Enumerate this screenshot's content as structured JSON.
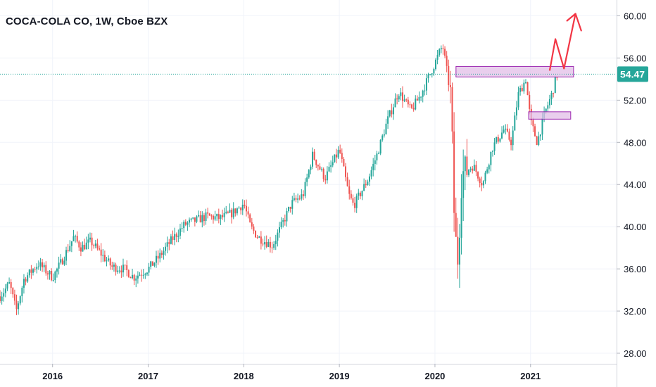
{
  "header": {
    "title": "COCA-COLA CO, 1W, Cboe BZX"
  },
  "colors": {
    "up": "#26a69a",
    "down": "#ef5350",
    "price_line": "#26a69a",
    "zone_fill": "#e1bee7",
    "zone_stroke": "#9c27b0",
    "arrow": "#f23645",
    "grid": "#f0f3fa"
  },
  "chart_data": {
    "type": "candlestick",
    "symbol": "COCA-COLA CO",
    "interval": "1W",
    "exchange": "Cboe BZX",
    "x_range": [
      2015.45,
      2021.9
    ],
    "ylim": [
      27,
      61.5
    ],
    "x_ticks": [
      {
        "label": "2016",
        "x": 2016.0
      },
      {
        "label": "2017",
        "x": 2017.0
      },
      {
        "label": "2018",
        "x": 2018.0
      },
      {
        "label": "2019",
        "x": 2019.0
      },
      {
        "label": "2020",
        "x": 2020.0
      },
      {
        "label": "2021",
        "x": 2021.0
      }
    ],
    "y_ticks": [
      "60.00",
      "56.00",
      "52.00",
      "48.00",
      "44.00",
      "40.00",
      "36.00",
      "32.00",
      "28.00"
    ],
    "current_price": 54.47,
    "current_price_label": "54.47",
    "price_path": [
      [
        2015.45,
        33.4
      ],
      [
        2015.55,
        34.6
      ],
      [
        2015.62,
        32.0
      ],
      [
        2015.7,
        35.0
      ],
      [
        2015.85,
        36.5
      ],
      [
        2016.0,
        35.2
      ],
      [
        2016.1,
        36.8
      ],
      [
        2016.22,
        39.0
      ],
      [
        2016.3,
        38.0
      ],
      [
        2016.4,
        38.6
      ],
      [
        2016.5,
        37.5
      ],
      [
        2016.62,
        36.2
      ],
      [
        2016.75,
        36.0
      ],
      [
        2016.85,
        35.2
      ],
      [
        2017.0,
        36.0
      ],
      [
        2017.12,
        37.2
      ],
      [
        2017.25,
        38.8
      ],
      [
        2017.38,
        40.2
      ],
      [
        2017.5,
        40.6
      ],
      [
        2017.62,
        41.0
      ],
      [
        2017.75,
        40.8
      ],
      [
        2017.88,
        41.3
      ],
      [
        2018.0,
        42.2
      ],
      [
        2018.07,
        40.0
      ],
      [
        2018.15,
        39.0
      ],
      [
        2018.3,
        38.2
      ],
      [
        2018.4,
        40.2
      ],
      [
        2018.5,
        42.2
      ],
      [
        2018.62,
        43.0
      ],
      [
        2018.72,
        46.8
      ],
      [
        2018.85,
        44.6
      ],
      [
        2019.0,
        47.3
      ],
      [
        2019.1,
        43.0
      ],
      [
        2019.15,
        42.0
      ],
      [
        2019.3,
        44.5
      ],
      [
        2019.4,
        47.0
      ],
      [
        2019.5,
        50.0
      ],
      [
        2019.62,
        52.8
      ],
      [
        2019.75,
        51.0
      ],
      [
        2019.85,
        52.5
      ],
      [
        2019.95,
        54.5
      ],
      [
        2020.08,
        57.2
      ],
      [
        2020.12,
        55.0
      ],
      [
        2020.17,
        52.0
      ],
      [
        2020.19,
        44.0
      ],
      [
        2020.21,
        39.0
      ],
      [
        2020.24,
        37.0
      ],
      [
        2020.28,
        45.0
      ],
      [
        2020.4,
        45.8
      ],
      [
        2020.5,
        44.0
      ],
      [
        2020.6,
        47.5
      ],
      [
        2020.72,
        49.2
      ],
      [
        2020.8,
        48.0
      ],
      [
        2020.87,
        52.5
      ],
      [
        2020.95,
        54.0
      ],
      [
        2021.0,
        50.0
      ],
      [
        2021.07,
        48.0
      ],
      [
        2021.15,
        50.8
      ],
      [
        2021.22,
        52.5
      ],
      [
        2021.28,
        54.5
      ]
    ],
    "zones": [
      {
        "x0": 2020.22,
        "x1": 2021.45,
        "y0": 54.2,
        "y1": 55.2
      },
      {
        "x0": 2020.98,
        "x1": 2021.42,
        "y0": 50.2,
        "y1": 50.9
      }
    ],
    "projection": [
      [
        2021.2,
        54.8
      ],
      [
        2021.26,
        57.8
      ],
      [
        2021.35,
        55.0
      ],
      [
        2021.47,
        60.2
      ],
      [
        2021.53,
        58.6
      ]
    ]
  }
}
